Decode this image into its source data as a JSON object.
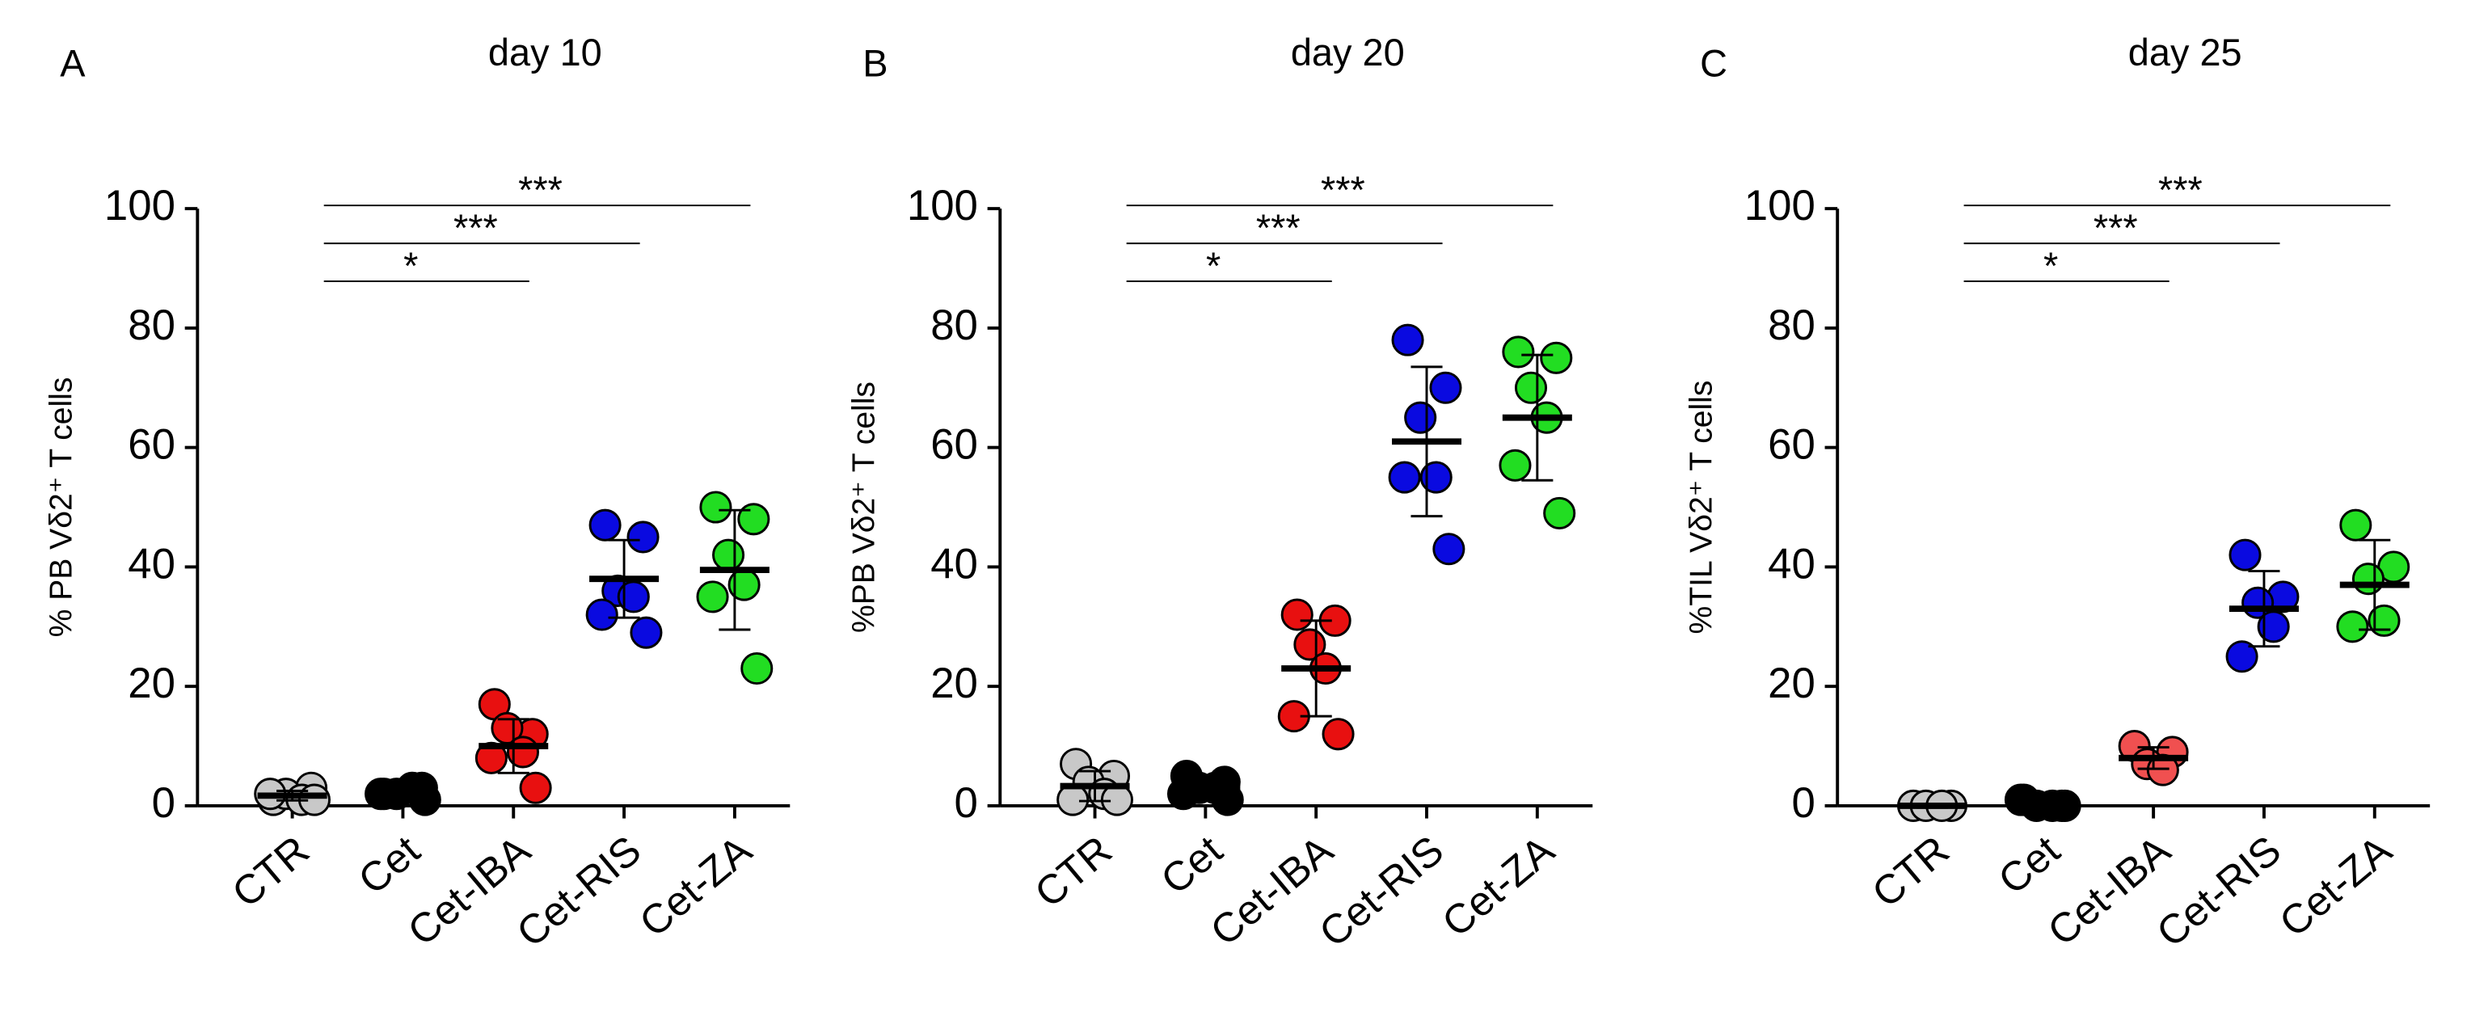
{
  "chart_data": [
    {
      "type": "dot",
      "panel": "A",
      "title": "day 10",
      "ylabel": "% PB Vδ2⁺ T cells",
      "ylim": [
        0,
        100
      ],
      "yticks": [
        0,
        20,
        40,
        60,
        80,
        100
      ],
      "significance": [
        "*",
        "***",
        "***"
      ],
      "groups": [
        {
          "name": "CTR",
          "color": "#c8c8c8",
          "values": [
            1,
            3,
            2,
            1,
            2,
            1
          ],
          "mean": 1.7,
          "sd": 0.8
        },
        {
          "name": "Cet",
          "color": "#000000",
          "values": [
            2,
            3,
            2,
            3,
            2,
            1
          ],
          "mean": 2.2,
          "sd": 0.7
        },
        {
          "name": "Cet-IBA",
          "color": "#e81010",
          "values": [
            17,
            12,
            13,
            9,
            8,
            3
          ],
          "mean": 10,
          "sd": 4.5
        },
        {
          "name": "Cet-RIS",
          "color": "#0a0ae0",
          "values": [
            47,
            45,
            36,
            35,
            32,
            29
          ],
          "mean": 38,
          "sd": 6.5
        },
        {
          "name": "Cet-ZA",
          "color": "#22dd22",
          "values": [
            50,
            48,
            42,
            37,
            35,
            23
          ],
          "mean": 39.5,
          "sd": 10
        }
      ]
    },
    {
      "type": "dot",
      "panel": "B",
      "title": "day 20",
      "ylabel": "%PB  Vδ2⁺ T cells",
      "ylim": [
        0,
        100
      ],
      "yticks": [
        0,
        20,
        40,
        60,
        80,
        100
      ],
      "significance": [
        "*",
        "***",
        "***"
      ],
      "groups": [
        {
          "name": "CTR",
          "color": "#c8c8c8",
          "values": [
            7,
            5,
            4,
            2,
            1,
            1
          ],
          "mean": 3.3,
          "sd": 2.5
        },
        {
          "name": "Cet",
          "color": "#000000",
          "values": [
            5,
            4,
            3,
            3,
            2,
            1
          ],
          "mean": 3,
          "sd": 1.4
        },
        {
          "name": "Cet-IBA",
          "color": "#e81010",
          "values": [
            32,
            31,
            27,
            23,
            15,
            12
          ],
          "mean": 23,
          "sd": 8
        },
        {
          "name": "Cet-RIS",
          "color": "#0a0ae0",
          "values": [
            78,
            70,
            65,
            55,
            55,
            43
          ],
          "mean": 61,
          "sd": 12.5
        },
        {
          "name": "Cet-ZA",
          "color": "#22dd22",
          "values": [
            76,
            75,
            70,
            65,
            57,
            49
          ],
          "mean": 65,
          "sd": 10.5
        }
      ]
    },
    {
      "type": "dot",
      "panel": "C",
      "title": "day 25",
      "ylabel": "%TIL  Vδ2⁺ T cells",
      "ylim": [
        0,
        100
      ],
      "yticks": [
        0,
        20,
        40,
        60,
        80,
        100
      ],
      "significance": [
        "*",
        "***",
        "***"
      ],
      "groups": [
        {
          "name": "CTR",
          "color": "#c8c8c8",
          "values": [
            0,
            0,
            0,
            0
          ],
          "mean": 0,
          "sd": 0.3
        },
        {
          "name": "Cet",
          "color": "#000000",
          "values": [
            1,
            0,
            0,
            0,
            1,
            0
          ],
          "mean": 0.3,
          "sd": 0.5
        },
        {
          "name": "Cet-IBA",
          "color": "#f05050",
          "values": [
            10,
            9,
            7,
            6
          ],
          "mean": 8,
          "sd": 1.8
        },
        {
          "name": "Cet-RIS",
          "color": "#0a0ae0",
          "values": [
            42,
            35,
            34,
            30,
            25
          ],
          "mean": 33,
          "sd": 6.3
        },
        {
          "name": "Cet-ZA",
          "color": "#22dd22",
          "values": [
            47,
            40,
            38,
            31,
            30
          ],
          "mean": 37,
          "sd": 7.5
        }
      ]
    }
  ]
}
